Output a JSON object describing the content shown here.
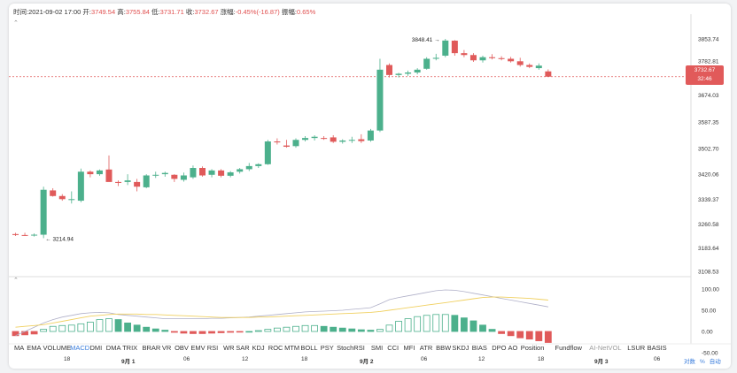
{
  "infobar": {
    "time": "时间:2021-09-02 17:00",
    "open_label": "开:",
    "open": "3749.54",
    "high_label": "高:",
    "high": "3755.84",
    "low_label": "低:",
    "low": "3731.71",
    "close_label": "收:",
    "close": "3732.67",
    "change_label": "涨幅:",
    "change": "-0.45%(-16.87)",
    "amp_label": "振幅:",
    "amp": "0.65%"
  },
  "collapse_icon": "chevron-up",
  "price_tag": {
    "price": "3732.67",
    "countdown": "32:46"
  },
  "colors": {
    "up": "#4cb08c",
    "down": "#e05a5a",
    "macd_line": "#b0b0c8",
    "signal_line": "#f0d060",
    "accent": "#3a7ddc"
  },
  "indicator_tabs": [
    "MA",
    "EMA",
    "VOLUME",
    "MACD",
    "DMI",
    "DMA",
    "TRIX",
    "BRAR",
    "VR",
    "OBV",
    "EMV",
    "RSI",
    "WR",
    "SAR",
    "KDJ",
    "ROC",
    "MTM",
    "BOLL",
    "PSY",
    "StochRSI",
    "SMI",
    "CCI",
    "MFI",
    "ATR",
    "BBW",
    "SKDJ",
    "BIAS",
    "DPO",
    "AO",
    "Position",
    "Fundflow",
    "AI-NetVOL",
    "LSUR",
    "BASIS"
  ],
  "active_tab": "MACD",
  "muted_tab": "AI-NetVOL",
  "scale_options": [
    "对数",
    "%",
    "自动"
  ],
  "time_labels": [
    "18",
    "9月 1",
    "06",
    "12",
    "18",
    "9月 2",
    "06",
    "12",
    "18",
    "9月 3",
    "06"
  ],
  "chart_data": {
    "type": "candlestick",
    "price_axis_ticks": [
      "3853.74",
      "3782.81",
      "3674.03",
      "3587.35",
      "3502.70",
      "3420.06",
      "3339.37",
      "3260.58",
      "3183.64",
      "3108.53"
    ],
    "indicator_axis_ticks": [
      "100.00",
      "50.00",
      "0.00",
      "-50.00"
    ],
    "annotations": {
      "high": "3848.41",
      "low": "3214.94"
    },
    "current_price": 3732.67,
    "candles": [
      [
        3228,
        3232,
        3222,
        3225
      ],
      [
        3225,
        3232,
        3222,
        3224
      ],
      [
        3224,
        3230,
        3220,
        3226
      ],
      [
        3226,
        3380,
        3214.94,
        3370
      ],
      [
        3368,
        3375,
        3348,
        3350
      ],
      [
        3350,
        3356,
        3335,
        3340
      ],
      [
        3338,
        3365,
        3326,
        3340
      ],
      [
        3335,
        3438,
        3330,
        3428
      ],
      [
        3428,
        3432,
        3410,
        3420
      ],
      [
        3420,
        3435,
        3415,
        3432
      ],
      [
        3435,
        3480,
        3400,
        3395
      ],
      [
        3395,
        3400,
        3382,
        3392
      ],
      [
        3395,
        3420,
        3385,
        3400
      ],
      [
        3395,
        3405,
        3365,
        3380
      ],
      [
        3378,
        3420,
        3375,
        3416
      ],
      [
        3416,
        3428,
        3408,
        3418
      ],
      [
        3420,
        3428,
        3412,
        3424
      ],
      [
        3418,
        3420,
        3395,
        3405
      ],
      [
        3402,
        3425,
        3396,
        3416
      ],
      [
        3410,
        3448,
        3405,
        3440
      ],
      [
        3440,
        3445,
        3412,
        3416
      ],
      [
        3418,
        3436,
        3410,
        3432
      ],
      [
        3432,
        3436,
        3410,
        3415
      ],
      [
        3415,
        3430,
        3410,
        3426
      ],
      [
        3428,
        3440,
        3422,
        3436
      ],
      [
        3436,
        3456,
        3430,
        3446
      ],
      [
        3446,
        3455,
        3440,
        3452
      ],
      [
        3452,
        3530,
        3450,
        3525
      ],
      [
        3525,
        3535,
        3515,
        3522
      ],
      [
        3512,
        3530,
        3505,
        3508
      ],
      [
        3510,
        3535,
        3505,
        3530
      ],
      [
        3530,
        3542,
        3525,
        3536
      ],
      [
        3536,
        3545,
        3528,
        3540
      ],
      [
        3536,
        3542,
        3530,
        3535
      ],
      [
        3538,
        3545,
        3520,
        3524
      ],
      [
        3524,
        3532,
        3518,
        3528
      ],
      [
        3528,
        3540,
        3520,
        3530
      ],
      [
        3532,
        3548,
        3520,
        3526
      ],
      [
        3528,
        3565,
        3524,
        3560
      ],
      [
        3560,
        3790,
        3555,
        3755
      ],
      [
        3770,
        3775,
        3730,
        3738
      ],
      [
        3738,
        3745,
        3730,
        3742
      ],
      [
        3742,
        3752,
        3735,
        3746
      ],
      [
        3746,
        3760,
        3740,
        3755
      ],
      [
        3758,
        3795,
        3755,
        3790
      ],
      [
        3790,
        3806,
        3785,
        3793
      ],
      [
        3800,
        3853.74,
        3795,
        3848.41
      ],
      [
        3848,
        3850,
        3800,
        3808
      ],
      [
        3808,
        3818,
        3795,
        3802
      ],
      [
        3802,
        3808,
        3780,
        3785
      ],
      [
        3785,
        3800,
        3778,
        3795
      ],
      [
        3795,
        3805,
        3788,
        3792
      ],
      [
        3792,
        3798,
        3785,
        3790
      ],
      [
        3790,
        3796,
        3778,
        3782
      ],
      [
        3782,
        3793,
        3765,
        3770
      ],
      [
        3770,
        3775,
        3760,
        3764
      ],
      [
        3760,
        3775,
        3755,
        3768
      ],
      [
        3749.54,
        3755.84,
        3731.71,
        3732.67
      ]
    ],
    "macd_hist": [
      -10,
      -8,
      -6,
      5,
      12,
      14,
      15,
      18,
      22,
      28,
      30,
      28,
      20,
      15,
      10,
      6,
      3,
      -2,
      -4,
      -5,
      -5,
      -4,
      -3,
      -2,
      -1,
      0,
      2,
      5,
      8,
      10,
      12,
      14,
      14,
      12,
      10,
      8,
      6,
      4,
      3,
      5,
      15,
      24,
      30,
      35,
      38,
      40,
      40,
      38,
      32,
      25,
      15,
      5,
      -5,
      -10,
      -15,
      -18,
      -22,
      -26
    ],
    "macd_line": [
      -10,
      0,
      10,
      20,
      28,
      34,
      38,
      42,
      44,
      45,
      44,
      40,
      38,
      36,
      34,
      32,
      30,
      30,
      30,
      30,
      30,
      31,
      31,
      32,
      33,
      34,
      36,
      38,
      40,
      42,
      44,
      46,
      47,
      48,
      49,
      50,
      52,
      54,
      56,
      65,
      75,
      80,
      84,
      88,
      92,
      96,
      98,
      97,
      94,
      90,
      86,
      82,
      78,
      74,
      70,
      66,
      62,
      58
    ],
    "signal_line": [
      10,
      12,
      14,
      16,
      20,
      24,
      28,
      32,
      36,
      38,
      40,
      41,
      41,
      41,
      40,
      40,
      39,
      38,
      37,
      36,
      35,
      34,
      33,
      33,
      33,
      33,
      34,
      34,
      35,
      36,
      37,
      38,
      39,
      40,
      41,
      42,
      43,
      44,
      45,
      47,
      50,
      53,
      56,
      59,
      62,
      65,
      68,
      71,
      74,
      77,
      80,
      81,
      81,
      80,
      79,
      78,
      76,
      74
    ]
  }
}
